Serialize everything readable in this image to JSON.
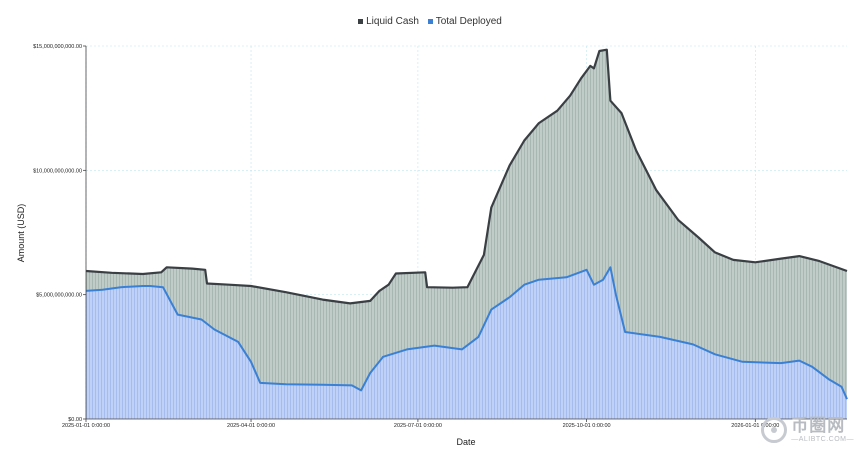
{
  "chart_data": {
    "type": "area",
    "xlabel": "Date",
    "ylabel": "Amount (USD)",
    "ylim": [
      0,
      15000000000
    ],
    "yticks": [
      0,
      5000000000,
      10000000000,
      15000000000
    ],
    "ytick_labels": [
      "$0.00",
      "$5,000,000,000.00",
      "$10,000,000,000.00",
      "$15,000,000,000.00"
    ],
    "x_range": [
      "2025-01-01",
      "2026-02-20"
    ],
    "xticks": [
      "2025-01-01",
      "2025-04-01",
      "2025-07-01",
      "2025-10-01",
      "2026-01-01"
    ],
    "xtick_labels": [
      "2025-01-01 0:00:00",
      "2025-04-01 0:00:00",
      "2025-07-01 0:00:00",
      "2025-10-01 0:00:00",
      "2026-01-01 0:00:00"
    ],
    "grid": true,
    "legend_position": "top-center",
    "series": [
      {
        "name": "Liquid Cash",
        "color": "#3a3f44",
        "fill": "#b9c7c2",
        "points": [
          [
            "2025-01-01",
            5950000000
          ],
          [
            "2025-01-15",
            5880000000
          ],
          [
            "2025-02-01",
            5830000000
          ],
          [
            "2025-02-11",
            5900000000
          ],
          [
            "2025-02-14",
            6100000000
          ],
          [
            "2025-02-28",
            6050000000
          ],
          [
            "2025-03-07",
            6000000000
          ],
          [
            "2025-03-08",
            5450000000
          ],
          [
            "2025-03-20",
            5400000000
          ],
          [
            "2025-04-01",
            5350000000
          ],
          [
            "2025-04-20",
            5100000000
          ],
          [
            "2025-05-10",
            4800000000
          ],
          [
            "2025-05-25",
            4650000000
          ],
          [
            "2025-06-05",
            4750000000
          ],
          [
            "2025-06-10",
            5150000000
          ],
          [
            "2025-06-15",
            5400000000
          ],
          [
            "2025-06-19",
            5850000000
          ],
          [
            "2025-07-05",
            5900000000
          ],
          [
            "2025-07-06",
            5300000000
          ],
          [
            "2025-07-20",
            5280000000
          ],
          [
            "2025-07-28",
            5300000000
          ],
          [
            "2025-08-06",
            6600000000
          ],
          [
            "2025-08-10",
            8500000000
          ],
          [
            "2025-08-20",
            10200000000
          ],
          [
            "2025-08-28",
            11200000000
          ],
          [
            "2025-09-05",
            11900000000
          ],
          [
            "2025-09-15",
            12400000000
          ],
          [
            "2025-09-22",
            13000000000
          ],
          [
            "2025-09-28",
            13700000000
          ],
          [
            "2025-10-03",
            14200000000
          ],
          [
            "2025-10-05",
            14100000000
          ],
          [
            "2025-10-08",
            14800000000
          ],
          [
            "2025-10-12",
            14850000000
          ],
          [
            "2025-10-14",
            12800000000
          ],
          [
            "2025-10-20",
            12300000000
          ],
          [
            "2025-10-28",
            10800000000
          ],
          [
            "2025-11-08",
            9200000000
          ],
          [
            "2025-11-20",
            8000000000
          ],
          [
            "2025-12-01",
            7300000000
          ],
          [
            "2025-12-10",
            6700000000
          ],
          [
            "2025-12-20",
            6400000000
          ],
          [
            "2026-01-01",
            6300000000
          ],
          [
            "2026-01-15",
            6450000000
          ],
          [
            "2026-01-25",
            6550000000
          ],
          [
            "2026-02-05",
            6350000000
          ],
          [
            "2026-02-20",
            5950000000
          ]
        ]
      },
      {
        "name": "Total Deployed",
        "color": "#3a80d4",
        "fill": "#b9cdf4",
        "points": [
          [
            "2025-01-01",
            5150000000
          ],
          [
            "2025-01-10",
            5200000000
          ],
          [
            "2025-01-20",
            5300000000
          ],
          [
            "2025-02-01",
            5350000000
          ],
          [
            "2025-02-05",
            5350000000
          ],
          [
            "2025-02-12",
            5300000000
          ],
          [
            "2025-02-20",
            4200000000
          ],
          [
            "2025-03-05",
            4000000000
          ],
          [
            "2025-03-12",
            3600000000
          ],
          [
            "2025-03-25",
            3100000000
          ],
          [
            "2025-04-01",
            2300000000
          ],
          [
            "2025-04-06",
            1450000000
          ],
          [
            "2025-04-20",
            1400000000
          ],
          [
            "2025-05-10",
            1380000000
          ],
          [
            "2025-05-26",
            1350000000
          ],
          [
            "2025-05-31",
            1150000000
          ],
          [
            "2025-06-05",
            1850000000
          ],
          [
            "2025-06-12",
            2500000000
          ],
          [
            "2025-06-25",
            2800000000
          ],
          [
            "2025-07-10",
            2950000000
          ],
          [
            "2025-07-25",
            2800000000
          ],
          [
            "2025-08-03",
            3300000000
          ],
          [
            "2025-08-10",
            4400000000
          ],
          [
            "2025-08-20",
            4900000000
          ],
          [
            "2025-08-28",
            5400000000
          ],
          [
            "2025-09-05",
            5600000000
          ],
          [
            "2025-09-20",
            5700000000
          ],
          [
            "2025-10-01",
            6000000000
          ],
          [
            "2025-10-05",
            5400000000
          ],
          [
            "2025-10-10",
            5600000000
          ],
          [
            "2025-10-14",
            6100000000
          ],
          [
            "2025-10-17",
            5000000000
          ],
          [
            "2025-10-22",
            3500000000
          ],
          [
            "2025-11-10",
            3300000000
          ],
          [
            "2025-11-28",
            3000000000
          ],
          [
            "2025-12-10",
            2600000000
          ],
          [
            "2025-12-25",
            2300000000
          ],
          [
            "2026-01-15",
            2250000000
          ],
          [
            "2026-01-25",
            2350000000
          ],
          [
            "2026-02-01",
            2100000000
          ],
          [
            "2026-02-10",
            1600000000
          ],
          [
            "2026-02-17",
            1300000000
          ],
          [
            "2026-02-20",
            800000000
          ]
        ]
      }
    ]
  },
  "watermark": {
    "main_text": "币圈网",
    "sub_text": "—ALIBTC.COM—"
  }
}
